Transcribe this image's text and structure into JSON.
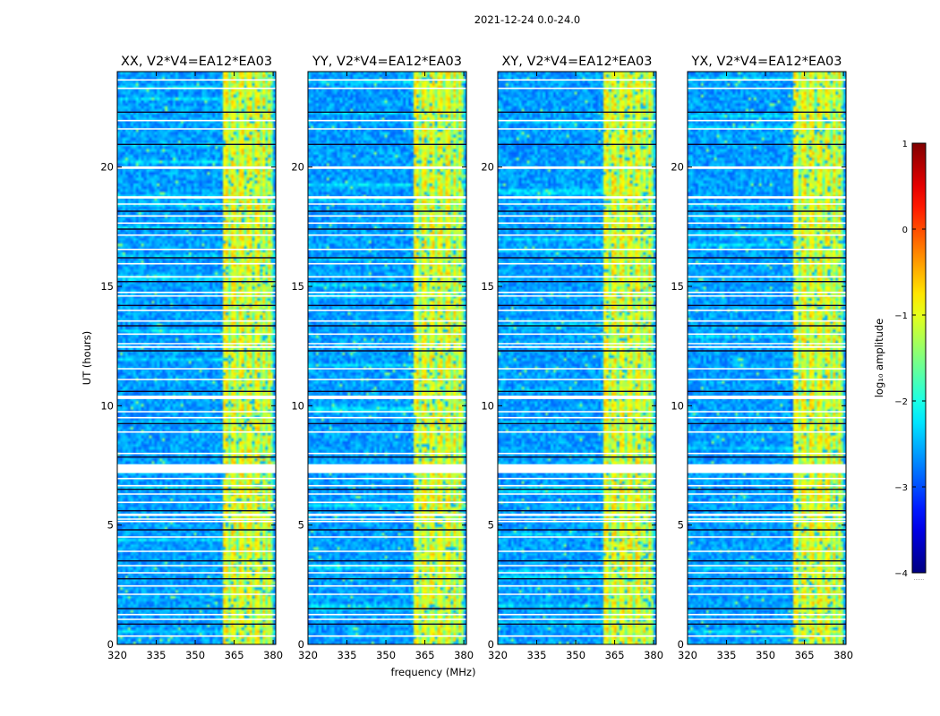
{
  "figure_title": "2021-12-24 0.0-24.0",
  "chart_data": {
    "type": "heatmap",
    "title": "2021-12-24 0.0-24.0",
    "xlabel": "frequency (MHz)",
    "ylabel": "UT (hours)",
    "xlim": [
      320,
      381
    ],
    "ylim": [
      0,
      24
    ],
    "xticks": [
      320,
      335,
      350,
      365,
      380
    ],
    "yticks": [
      0,
      5,
      10,
      15,
      20
    ],
    "panels": [
      {
        "title": "XX, V2*V4=EA12*EA03",
        "polarization": "XX"
      },
      {
        "title": "YY, V2*V4=EA12*EA03",
        "polarization": "YY"
      },
      {
        "title": "XY, V2*V4=EA12*EA03",
        "polarization": "XY"
      },
      {
        "title": "YX, V2*V4=EA12*EA03",
        "polarization": "YX"
      }
    ],
    "rfi_band_mhz": [
      360.5,
      379.5
    ],
    "rfi_channels_mhz": [
      361.5,
      364,
      367.5,
      370.5,
      373.5,
      376,
      378
    ],
    "flagged_ut_hours": [
      [
        7.18,
        7.55
      ],
      [
        10.28,
        10.42
      ],
      [
        19.95,
        20.03
      ],
      [
        5.38,
        5.48
      ],
      [
        18.68,
        18.78
      ],
      [
        12.45,
        12.5
      ]
    ],
    "flag_lines_ut_hours": [
      0.35,
      0.85,
      1.05,
      1.25,
      1.5,
      2.1,
      2.45,
      2.75,
      3.0,
      3.3,
      3.5,
      3.9,
      4.5,
      4.8,
      5.15,
      5.25,
      5.6,
      5.95,
      6.3,
      6.5,
      6.65,
      6.95,
      7.85,
      8.0,
      8.9,
      9.25,
      9.5,
      9.75,
      10.6,
      11.1,
      11.55,
      12.3,
      12.6,
      13.0,
      13.35,
      13.55,
      14.0,
      14.2,
      14.6,
      14.75,
      15.2,
      15.4,
      15.95,
      16.2,
      16.55,
      17.15,
      17.4,
      17.65,
      17.95,
      18.15,
      18.45,
      19.95,
      20.95,
      21.6,
      21.95,
      22.3,
      23.3,
      23.65
    ],
    "colorbar": {
      "label": "log₁₀ amplitude",
      "range": [
        -4,
        1
      ],
      "ticks": [
        "1",
        "0",
        "−1",
        "−2",
        "−3",
        "−4"
      ],
      "extend_label": "......",
      "colormap": "jet"
    }
  }
}
